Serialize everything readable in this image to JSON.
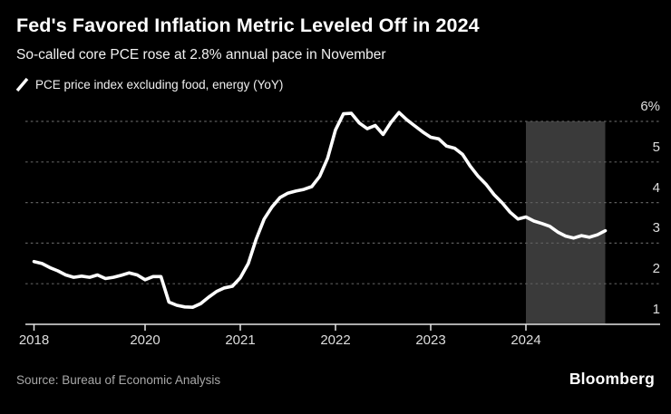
{
  "header": {
    "title": "Fed's Favored Inflation Metric Leveled Off in 2024",
    "subtitle": "So-called core PCE rose at 2.8% annual pace in November"
  },
  "legend": {
    "marker": "slash-line-icon",
    "series_label": "PCE price index excluding food, energy (YoY)"
  },
  "chart_data": {
    "type": "line",
    "title": "Fed's Favored Inflation Metric Leveled Off in 2024",
    "subtitle": "So-called core PCE rose at 2.8% annual pace in November",
    "unit": "% year-over-year",
    "series": [
      {
        "name": "PCE price index excluding food, energy (YoY)",
        "color": "#ffffff",
        "start_month": "2018-11",
        "end_month": "2024-11",
        "values": [
          2.05,
          2.0,
          1.9,
          1.82,
          1.72,
          1.66,
          1.69,
          1.66,
          1.72,
          1.63,
          1.66,
          1.71,
          1.77,
          1.72,
          1.6,
          1.68,
          1.68,
          1.05,
          0.97,
          0.93,
          0.92,
          1.01,
          1.17,
          1.31,
          1.4,
          1.44,
          1.65,
          2.0,
          2.6,
          3.1,
          3.4,
          3.63,
          3.74,
          3.79,
          3.83,
          3.9,
          4.15,
          4.6,
          5.3,
          5.7,
          5.71,
          5.47,
          5.33,
          5.41,
          5.19,
          5.49,
          5.73,
          5.55,
          5.4,
          5.25,
          5.12,
          5.08,
          4.9,
          4.85,
          4.7,
          4.4,
          4.15,
          3.95,
          3.7,
          3.5,
          3.27,
          3.1,
          3.15,
          3.05,
          2.99,
          2.92,
          2.78,
          2.68,
          2.63,
          2.69,
          2.65,
          2.71,
          2.81
        ]
      }
    ],
    "x_axis": {
      "tick_labels": [
        "2018",
        "2020",
        "2021",
        "2022",
        "2023",
        "2024"
      ],
      "tick_month_indices": [
        0,
        14,
        26,
        38,
        50,
        62
      ]
    },
    "y_axis": {
      "tick_labels": [
        "6%",
        "5",
        "4",
        "3",
        "2",
        "1"
      ],
      "side": "right",
      "range": [
        0.5,
        6.3
      ],
      "gridlines": "dashed"
    },
    "highlight_region": {
      "label": "2024 year-to-date shading",
      "start_month_index": 62,
      "end_month_index": 72,
      "color": "#3a3a3a"
    },
    "last_value_pct": 2.8
  },
  "footer": {
    "source": "Source: Bureau of Economic Analysis",
    "brand": "Bloomberg"
  },
  "colors": {
    "background": "#000000",
    "line": "#ffffff",
    "grid": "#5e5e5e",
    "axis": "#e6e6e6",
    "tick_text": "#dedede",
    "highlight": "#3a3a3a",
    "source_text": "#a8a8a8"
  }
}
